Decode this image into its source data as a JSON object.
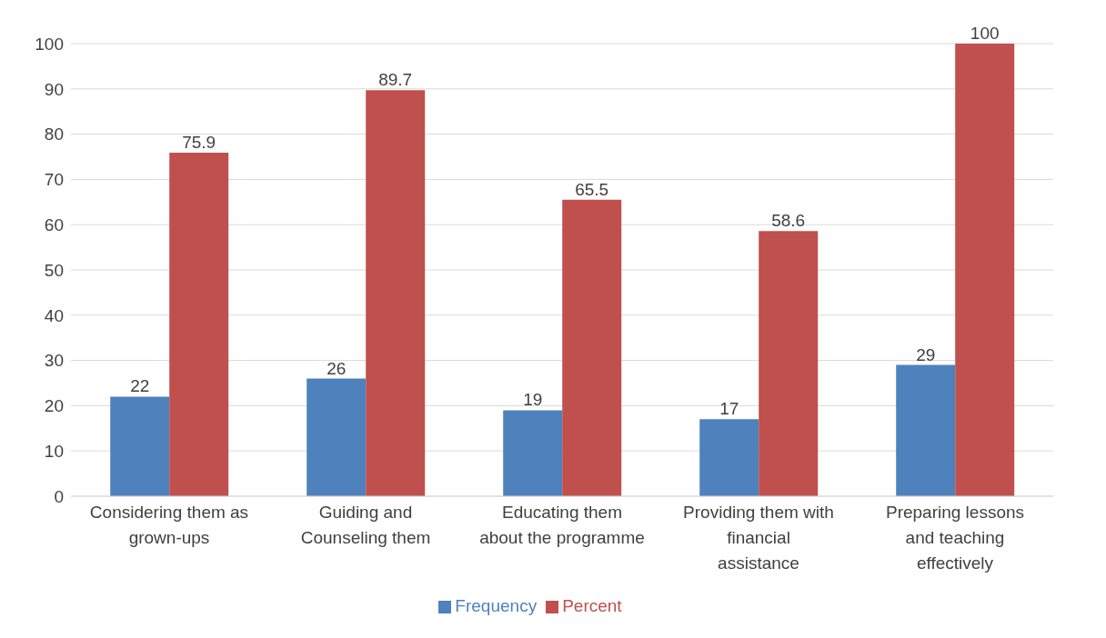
{
  "chart_data": {
    "type": "bar",
    "categories": [
      "Considering them as grown-ups",
      "Guiding and Counseling them",
      "Educating them about the programme",
      "Providing them with financial assistance",
      "Preparing lessons and teaching effectively"
    ],
    "series": [
      {
        "name": "Frequency",
        "color": "#4f81bd",
        "values": [
          22,
          26,
          19,
          17,
          29
        ]
      },
      {
        "name": "Percent",
        "color": "#c0504d",
        "values": [
          75.9,
          89.7,
          65.5,
          58.6,
          100
        ]
      }
    ],
    "ylim": [
      0,
      100
    ],
    "yticks": [
      0,
      10,
      20,
      30,
      40,
      50,
      60,
      70,
      80,
      90,
      100
    ],
    "grid": "y",
    "legend": "bottom",
    "data_labels": true
  }
}
